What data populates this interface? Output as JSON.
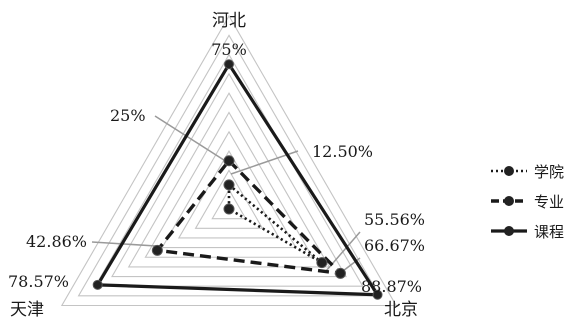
{
  "chart_data": {
    "type": "radar",
    "categories": [
      "河北",
      "北京",
      "天津"
    ],
    "ylim": [
      0,
      100
    ],
    "grid": true,
    "legend_position": "right",
    "series": [
      {
        "name": "学院",
        "values": [
          12.5,
          55.56,
          0
        ],
        "value_labels": [
          "12.50%",
          "55.56%",
          ""
        ],
        "style": "dotted",
        "color": "#1a1a1a"
      },
      {
        "name": "专业",
        "values": [
          25,
          66.67,
          42.86
        ],
        "value_labels": [
          "25%",
          "66.67%",
          "42.86%"
        ],
        "style": "dashed",
        "color": "#1a1a1a"
      },
      {
        "name": "课程",
        "values": [
          75,
          88.87,
          78.57
        ],
        "value_labels": [
          "75%",
          "88.87%",
          "78.57%"
        ],
        "style": "solid",
        "color": "#1a1a1a"
      }
    ]
  }
}
